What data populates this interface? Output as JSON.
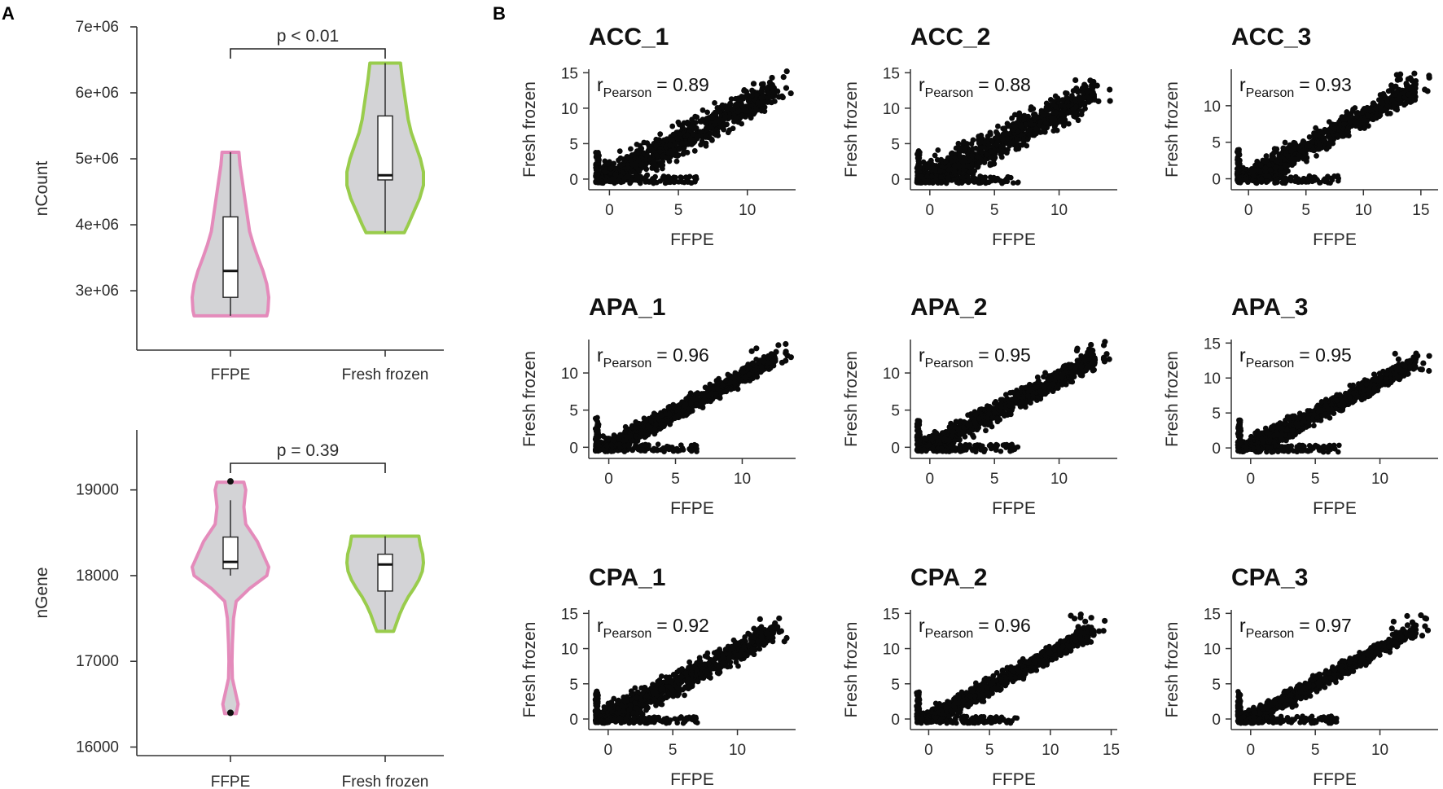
{
  "figure": {
    "panel_a_label": "A",
    "panel_b_label": "B"
  },
  "chart_data": [
    {
      "type": "violin",
      "panel": "A",
      "ylabel": "nCount",
      "xlabel": "",
      "ylim": [
        2100000,
        7000000
      ],
      "yticks": [
        3000000,
        4000000,
        5000000,
        6000000,
        7000000
      ],
      "ytick_labels": [
        "3e+06",
        "4e+06",
        "5e+06",
        "6e+06",
        "7e+06"
      ],
      "categories": [
        "FFPE",
        "Fresh frozen"
      ],
      "significance": "p < 0.01",
      "series": [
        {
          "name": "FFPE",
          "color": "#e48bbb",
          "fill": "#d3d3d6",
          "min": 2620000,
          "q1": 2900000,
          "median": 3300000,
          "q3": 4120000,
          "max": 5100000,
          "density_y": [
            2620000,
            2700000,
            2900000,
            3100000,
            3300000,
            3500000,
            3700000,
            3900000,
            4100000,
            4300000,
            4500000,
            4700000,
            4900000,
            5100000
          ],
          "density_w": [
            0.95,
            0.98,
            1.0,
            0.95,
            0.85,
            0.72,
            0.6,
            0.5,
            0.45,
            0.4,
            0.35,
            0.3,
            0.25,
            0.22
          ],
          "outliers": []
        },
        {
          "name": "Fresh frozen",
          "color": "#99cc4c",
          "fill": "#d3d3d6",
          "min": 3880000,
          "q1": 4680000,
          "median": 4750000,
          "q3": 5650000,
          "max": 6450000,
          "density_y": [
            3880000,
            4000000,
            4200000,
            4400000,
            4600000,
            4800000,
            5000000,
            5200000,
            5400000,
            5600000,
            5800000,
            6000000,
            6200000,
            6450000
          ],
          "density_w": [
            0.5,
            0.6,
            0.75,
            0.9,
            1.0,
            1.0,
            0.92,
            0.8,
            0.68,
            0.6,
            0.55,
            0.5,
            0.45,
            0.4
          ],
          "outliers": []
        }
      ]
    },
    {
      "type": "violin",
      "panel": "A",
      "ylabel": "nGene",
      "xlabel": "",
      "ylim": [
        15900,
        19700
      ],
      "yticks": [
        16000,
        17000,
        18000,
        19000
      ],
      "ytick_labels": [
        "16000",
        "17000",
        "18000",
        "19000"
      ],
      "categories": [
        "FFPE",
        "Fresh frozen"
      ],
      "significance": "p = 0.39",
      "series": [
        {
          "name": "FFPE",
          "color": "#e48bbb",
          "fill": "#d3d3d6",
          "min": 18000,
          "q1": 18080,
          "median": 18160,
          "q3": 18450,
          "max": 18880,
          "density_y": [
            16390,
            16500,
            16600,
            16800,
            17000,
            17200,
            17500,
            17700,
            17850,
            18000,
            18100,
            18200,
            18400,
            18600,
            18800,
            19000,
            19090
          ],
          "density_w": [
            0.15,
            0.2,
            0.15,
            0.05,
            0.04,
            0.05,
            0.08,
            0.15,
            0.5,
            0.95,
            1.0,
            0.9,
            0.7,
            0.4,
            0.35,
            0.4,
            0.35
          ],
          "outliers": [
            19100,
            16400
          ]
        },
        {
          "name": "Fresh frozen",
          "color": "#99cc4c",
          "fill": "#d3d3d6",
          "min": 17370,
          "q1": 17820,
          "median": 18130,
          "q3": 18250,
          "max": 18460,
          "density_y": [
            17350,
            17450,
            17550,
            17650,
            17750,
            17850,
            17950,
            18050,
            18150,
            18250,
            18350,
            18460
          ],
          "density_w": [
            0.22,
            0.3,
            0.38,
            0.48,
            0.6,
            0.75,
            0.88,
            0.97,
            1.0,
            0.98,
            0.92,
            0.88
          ],
          "outliers": []
        }
      ]
    },
    {
      "type": "scatter",
      "panel": "B",
      "title": "ACC_1",
      "xlabel": "FFPE",
      "ylabel": "Fresh frozen",
      "pearson_prefix": "r",
      "pearson_sub": "Pearson",
      "pearson_value": "= 0.89",
      "r": 0.89,
      "xlim": [
        -1.5,
        13.5
      ],
      "ylim": [
        -1.5,
        15.5
      ],
      "xticks": [
        0,
        5,
        10
      ],
      "yticks": [
        0,
        5,
        10,
        15
      ],
      "x_max": 13.2,
      "y_max": 14.8
    },
    {
      "type": "scatter",
      "panel": "B",
      "title": "ACC_2",
      "xlabel": "FFPE",
      "ylabel": "Fresh frozen",
      "pearson_prefix": "r",
      "pearson_sub": "Pearson",
      "pearson_value": "= 0.88",
      "r": 0.88,
      "xlim": [
        -1.5,
        14.5
      ],
      "ylim": [
        -1.5,
        15.5
      ],
      "xticks": [
        0,
        5,
        10
      ],
      "yticks": [
        0,
        5,
        10,
        15
      ],
      "x_max": 14.0,
      "y_max": 14.2
    },
    {
      "type": "scatter",
      "panel": "B",
      "title": "ACC_3",
      "xlabel": "FFPE",
      "ylabel": "Fresh frozen",
      "pearson_prefix": "r",
      "pearson_sub": "Pearson",
      "pearson_value": "= 0.93",
      "r": 0.93,
      "xlim": [
        -1.5,
        16.5
      ],
      "ylim": [
        -1.5,
        15.0
      ],
      "xticks": [
        0,
        5,
        10,
        15
      ],
      "yticks": [
        0,
        5,
        10
      ],
      "x_max": 15.8,
      "y_max": 14.4
    },
    {
      "type": "scatter",
      "panel": "B",
      "title": "APA_1",
      "xlabel": "FFPE",
      "ylabel": "Fresh frozen",
      "pearson_prefix": "r",
      "pearson_sub": "Pearson",
      "pearson_value": "= 0.96",
      "r": 0.96,
      "xlim": [
        -1.5,
        14.0
      ],
      "ylim": [
        -1.5,
        14.5
      ],
      "xticks": [
        0,
        5,
        10
      ],
      "yticks": [
        0,
        5,
        10
      ],
      "x_max": 13.7,
      "y_max": 14.0
    },
    {
      "type": "scatter",
      "panel": "B",
      "title": "APA_2",
      "xlabel": "FFPE",
      "ylabel": "Fresh frozen",
      "pearson_prefix": "r",
      "pearson_sub": "Pearson",
      "pearson_value": "= 0.95",
      "r": 0.95,
      "xlim": [
        -1.5,
        14.5
      ],
      "ylim": [
        -1.5,
        14.5
      ],
      "xticks": [
        0,
        5,
        10
      ],
      "yticks": [
        0,
        5,
        10
      ],
      "x_max": 14.0,
      "y_max": 14.0
    },
    {
      "type": "scatter",
      "panel": "B",
      "title": "APA_3",
      "xlabel": "FFPE",
      "ylabel": "Fresh frozen",
      "pearson_prefix": "r",
      "pearson_sub": "Pearson",
      "pearson_value": "= 0.95",
      "r": 0.95,
      "xlim": [
        -1.5,
        14.5
      ],
      "ylim": [
        -1.5,
        15.5
      ],
      "xticks": [
        0,
        5,
        10
      ],
      "yticks": [
        0,
        5,
        10,
        15
      ],
      "x_max": 14.0,
      "y_max": 14.2
    },
    {
      "type": "scatter",
      "panel": "B",
      "title": "CPA_1",
      "xlabel": "FFPE",
      "ylabel": "Fresh frozen",
      "pearson_prefix": "r",
      "pearson_sub": "Pearson",
      "pearson_value": "= 0.92",
      "r": 0.92,
      "xlim": [
        -1.5,
        14.5
      ],
      "ylim": [
        -1.5,
        15.5
      ],
      "xticks": [
        0,
        5,
        10
      ],
      "yticks": [
        0,
        5,
        10,
        15
      ],
      "x_max": 14.0,
      "y_max": 14.3
    },
    {
      "type": "scatter",
      "panel": "B",
      "title": "CPA_2",
      "xlabel": "FFPE",
      "ylabel": "Fresh frozen",
      "pearson_prefix": "r",
      "pearson_sub": "Pearson",
      "pearson_value": "= 0.96",
      "r": 0.96,
      "xlim": [
        -1.5,
        15.5
      ],
      "ylim": [
        -1.5,
        15.5
      ],
      "xticks": [
        0,
        5,
        10,
        15
      ],
      "yticks": [
        0,
        5,
        10,
        15
      ],
      "x_max": 14.8,
      "y_max": 14.6
    },
    {
      "type": "scatter",
      "panel": "B",
      "title": "CPA_3",
      "xlabel": "FFPE",
      "ylabel": "Fresh frozen",
      "pearson_prefix": "r",
      "pearson_sub": "Pearson",
      "pearson_value": "= 0.97",
      "r": 0.97,
      "xlim": [
        -1.5,
        14.5
      ],
      "ylim": [
        -1.5,
        15.5
      ],
      "xticks": [
        0,
        5,
        10
      ],
      "yticks": [
        0,
        5,
        10,
        15
      ],
      "x_max": 14.0,
      "y_max": 14.9
    }
  ]
}
